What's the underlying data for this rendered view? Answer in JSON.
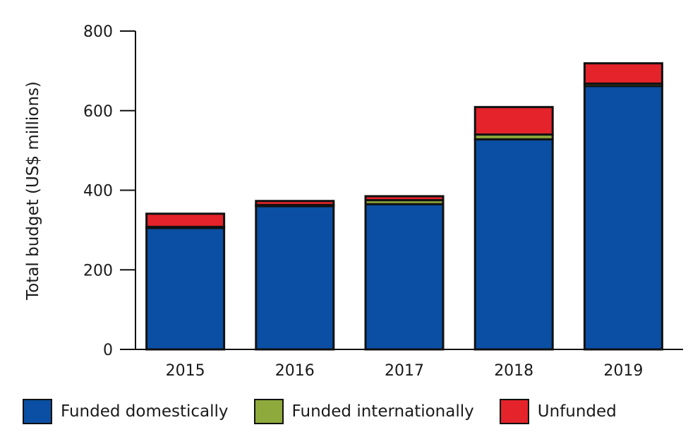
{
  "chart_data": {
    "type": "bar",
    "stacked": true,
    "categories": [
      "2015",
      "2016",
      "2017",
      "2018",
      "2019"
    ],
    "series": [
      {
        "name": "Funded domestically",
        "color": "#0a4fa3",
        "values": [
          305,
          360,
          365,
          528,
          662
        ]
      },
      {
        "name": "Funded internationally",
        "color": "#8faa3c",
        "values": [
          3,
          3,
          10,
          12,
          6
        ]
      },
      {
        "name": "Unfunded",
        "color": "#e4232a",
        "values": [
          33,
          10,
          10,
          69,
          51
        ]
      }
    ],
    "title": "",
    "xlabel": "",
    "ylabel": "Total budget (US$ millions)",
    "yticks": [
      "0",
      "200",
      "400",
      "600",
      "800"
    ],
    "ylim": [
      0,
      800
    ],
    "grid": false,
    "legend_position": "bottom"
  }
}
